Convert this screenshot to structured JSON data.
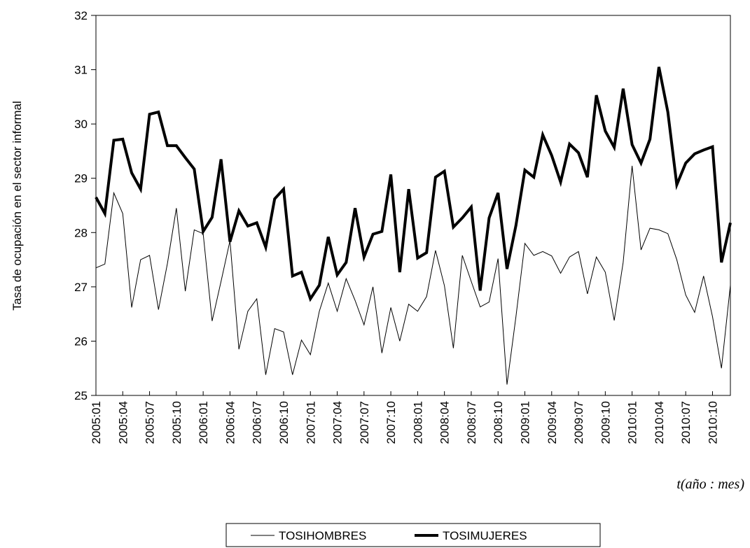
{
  "chart_data": {
    "type": "line",
    "y_label": "Tasa de ocupación en el sector informal",
    "x_label": "t(año : mes)",
    "categories": [
      "2005:01",
      null,
      null,
      "2005:04",
      null,
      null,
      "2005:07",
      null,
      null,
      "2005:10",
      null,
      null,
      "2006:01",
      null,
      null,
      "2006:04",
      null,
      null,
      "2006:07",
      null,
      null,
      "2006:10",
      null,
      null,
      "2007:01",
      null,
      null,
      "2007:04",
      null,
      null,
      "2007:07",
      null,
      null,
      "2007:10",
      null,
      null,
      "2008:01",
      null,
      null,
      "2008:04",
      null,
      null,
      "2008:07",
      null,
      null,
      "2008:10",
      null,
      null,
      "2009:01",
      null,
      null,
      "2009:04",
      null,
      null,
      "2009:07",
      null,
      null,
      "2009:10",
      null,
      null,
      "2010:01",
      null,
      null,
      "2010:04",
      null,
      null,
      "2010:07",
      null,
      null,
      "2010:10",
      null,
      null
    ],
    "series": [
      {
        "name": "TOSIHOMBRES",
        "color": "#000000",
        "values": [
          27.35,
          27.42,
          28.73,
          28.35,
          26.62,
          27.5,
          27.58,
          26.58,
          27.43,
          28.45,
          26.92,
          28.05,
          27.98,
          26.37,
          27.1,
          27.85,
          25.85,
          26.55,
          26.78,
          25.38,
          26.23,
          26.17,
          25.38,
          26.02,
          25.75,
          26.55,
          27.07,
          26.55,
          27.15,
          26.75,
          26.3,
          27.0,
          25.78,
          26.62,
          26.0,
          26.68,
          26.55,
          26.82,
          27.67,
          27.02,
          25.87,
          27.58,
          27.1,
          26.63,
          26.72,
          27.52,
          25.2,
          26.45,
          27.8,
          27.58,
          27.65,
          27.57,
          27.25,
          27.55,
          27.65,
          26.87,
          27.55,
          27.27,
          26.38,
          27.45,
          29.23,
          27.68,
          28.08,
          28.05,
          27.98,
          27.5,
          26.85,
          26.53,
          27.2,
          26.45,
          25.5,
          27.03
        ]
      },
      {
        "name": "TOSIMUJERES",
        "color": "#000000",
        "values": [
          28.65,
          28.35,
          29.7,
          29.72,
          29.1,
          28.8,
          30.18,
          30.22,
          29.6,
          29.6,
          29.38,
          29.17,
          28.02,
          28.28,
          29.35,
          27.83,
          28.4,
          28.12,
          28.18,
          27.73,
          28.62,
          28.8,
          27.2,
          27.27,
          26.78,
          27.03,
          27.92,
          27.22,
          27.45,
          28.45,
          27.55,
          27.97,
          28.02,
          29.07,
          27.27,
          28.8,
          27.53,
          27.63,
          29.02,
          29.13,
          28.1,
          28.27,
          28.47,
          26.93,
          28.27,
          28.73,
          27.33,
          28.13,
          29.15,
          29.02,
          29.8,
          29.42,
          28.93,
          29.63,
          29.47,
          29.02,
          30.53,
          29.87,
          29.57,
          30.65,
          29.62,
          29.28,
          29.72,
          31.05,
          30.22,
          28.88,
          29.28,
          29.45,
          29.52,
          29.58,
          27.45,
          28.18
        ]
      }
    ],
    "ylim": [
      25,
      32
    ],
    "yticks": [
      25,
      26,
      27,
      28,
      29,
      30,
      31,
      32
    ],
    "grid": false,
    "legend": "bottom"
  }
}
